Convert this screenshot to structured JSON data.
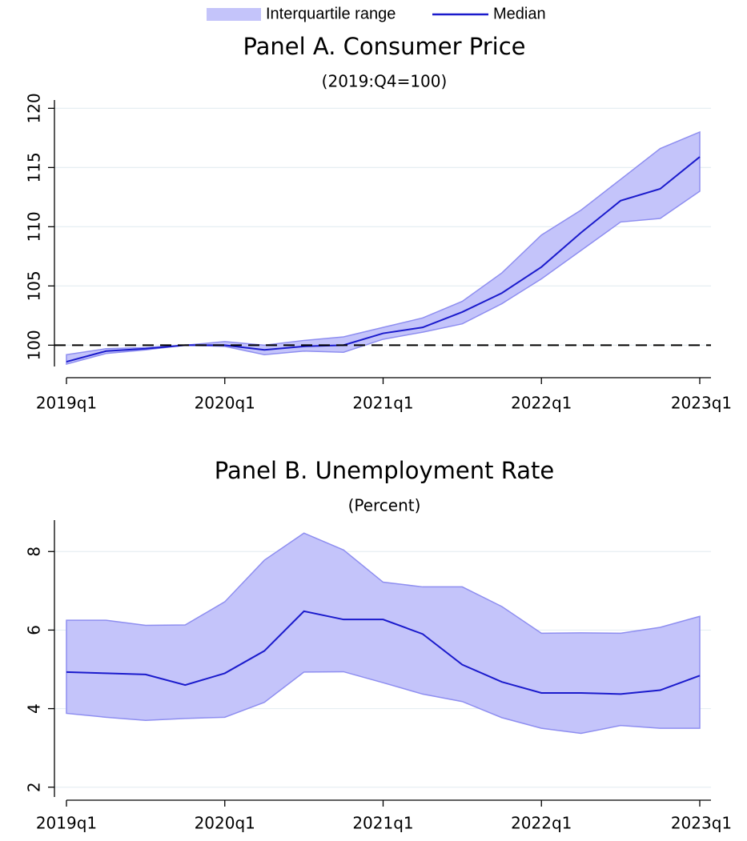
{
  "chart_data": [
    {
      "type": "line",
      "title": "Panel A. Consumer Price",
      "subtitle": "(2019:Q4=100)",
      "legend": "top",
      "categories": [
        "2019q1",
        null,
        null,
        null,
        "2020q1",
        null,
        null,
        null,
        "2021q1",
        null,
        null,
        null,
        "2022q1",
        null,
        null,
        null,
        "2023q1"
      ],
      "series": [
        {
          "name": "Interquartile range",
          "type": "band",
          "color": "#c4c4fa",
          "edge_color": "#8e8ef0",
          "upper": [
            99.2,
            99.7,
            99.8,
            100,
            100.3,
            100,
            100.4,
            100.7,
            101.5,
            102.3,
            103.7,
            106.1,
            109.3,
            111.4,
            114.0,
            116.6,
            118.0
          ],
          "lower": [
            98.4,
            99.3,
            99.6,
            100,
            99.9,
            99.2,
            99.5,
            99.4,
            100.5,
            101.1,
            101.8,
            103.5,
            105.6,
            108.0,
            110.4,
            110.7,
            113.0
          ]
        },
        {
          "name": "Median",
          "type": "line",
          "color": "#1a1acc",
          "values": [
            98.6,
            99.5,
            99.7,
            100,
            100,
            99.6,
            99.9,
            100,
            101.0,
            101.5,
            102.8,
            104.4,
            106.6,
            109.5,
            112.2,
            113.2,
            115.9
          ]
        }
      ],
      "hline": 100,
      "ylim": [
        98.2,
        120.7
      ],
      "yticks": [
        100,
        105,
        110,
        115,
        120
      ],
      "grid": true
    },
    {
      "type": "line",
      "title": "Panel B. Unemployment Rate",
      "subtitle": "(Percent)",
      "categories": [
        "2019q1",
        null,
        null,
        null,
        "2020q1",
        null,
        null,
        null,
        "2021q1",
        null,
        null,
        null,
        "2022q1",
        null,
        null,
        null,
        "2023q1"
      ],
      "series": [
        {
          "type": "band",
          "color": "#c4c4fa",
          "edge_color": "#8e8ef0",
          "upper": [
            6.25,
            6.25,
            6.12,
            6.13,
            6.72,
            7.78,
            8.47,
            8.04,
            7.22,
            7.1,
            7.1,
            6.6,
            5.92,
            5.93,
            5.92,
            6.07,
            6.35
          ],
          "lower": [
            3.88,
            3.78,
            3.7,
            3.75,
            3.78,
            4.16,
            4.93,
            4.94,
            4.66,
            4.37,
            4.18,
            3.77,
            3.5,
            3.37,
            3.57,
            3.5,
            3.5
          ]
        },
        {
          "type": "line",
          "color": "#1a1acc",
          "values": [
            4.93,
            4.9,
            4.87,
            4.6,
            4.9,
            5.47,
            6.48,
            6.27,
            6.27,
            5.9,
            5.12,
            4.68,
            4.4,
            4.4,
            4.37,
            4.47,
            4.84
          ]
        }
      ],
      "ylim": [
        1.75,
        8.8
      ],
      "yticks": [
        2,
        4,
        6,
        8
      ],
      "grid": true
    }
  ]
}
